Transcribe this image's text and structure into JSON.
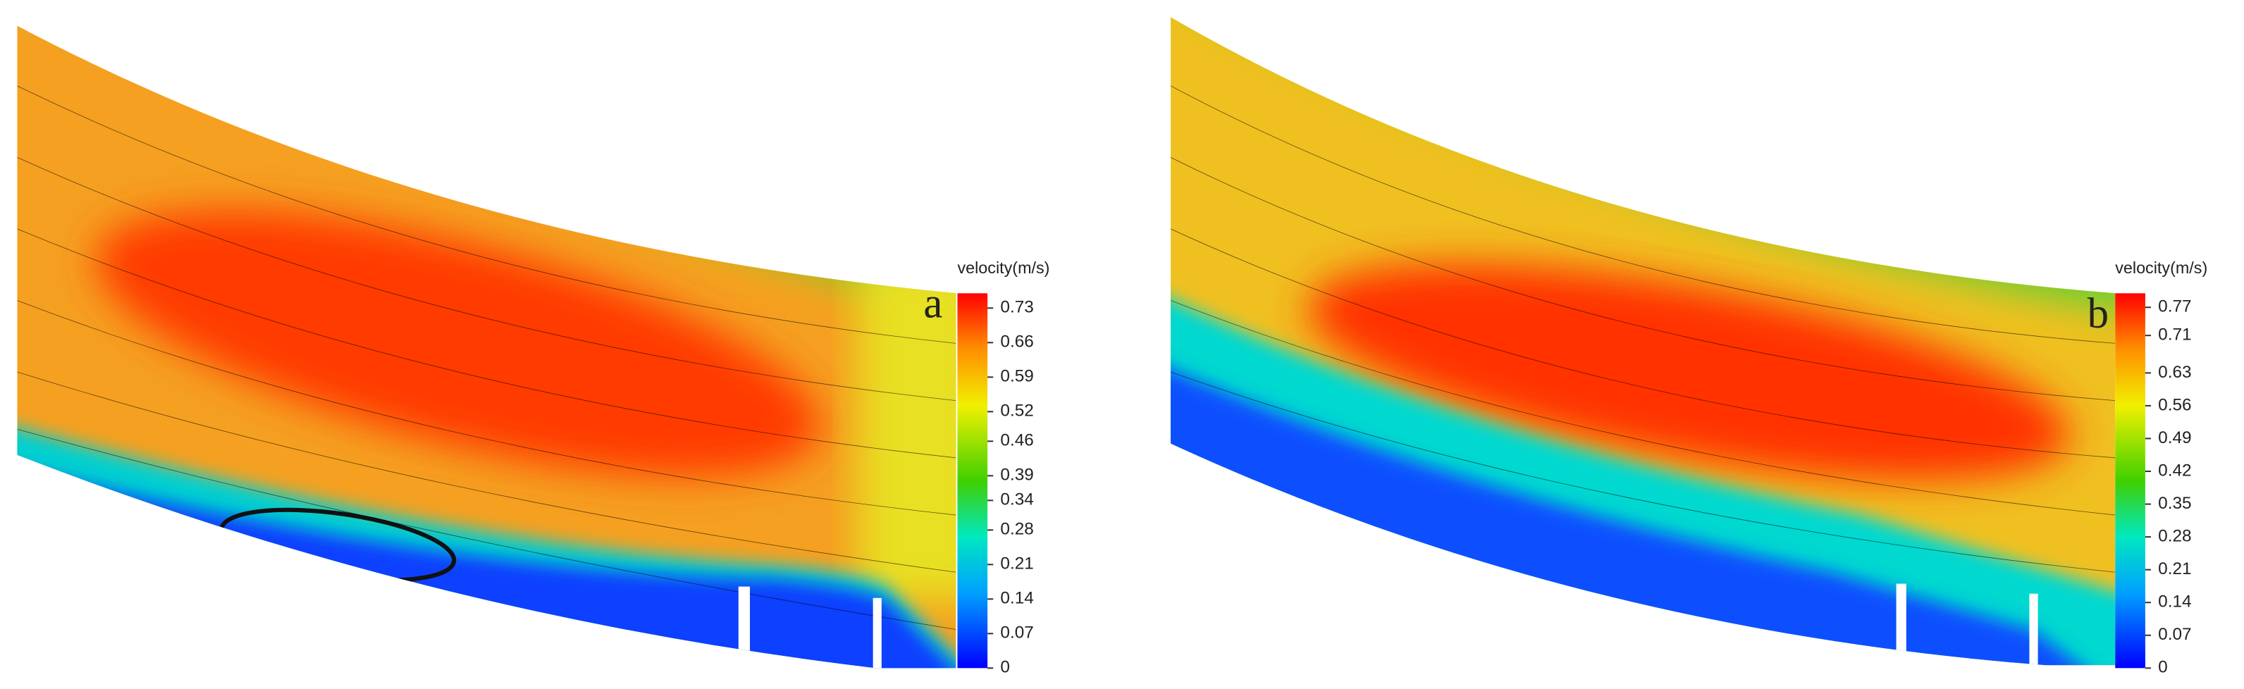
{
  "panels": [
    {
      "label": "a",
      "colorbar": {
        "title": "velocity(m/s)",
        "range": [
          0,
          0.76
        ],
        "ticks": [
          0,
          0.07,
          0.14,
          0.21,
          0.28,
          0.34,
          0.39,
          0.46,
          0.52,
          0.59,
          0.66,
          0.73
        ]
      }
    },
    {
      "label": "b",
      "colorbar": {
        "title": "velocity(m/s)",
        "range": [
          0,
          0.8
        ],
        "ticks": [
          0,
          0.07,
          0.14,
          0.21,
          0.28,
          0.35,
          0.42,
          0.49,
          0.56,
          0.63,
          0.71,
          0.77
        ]
      }
    }
  ]
}
